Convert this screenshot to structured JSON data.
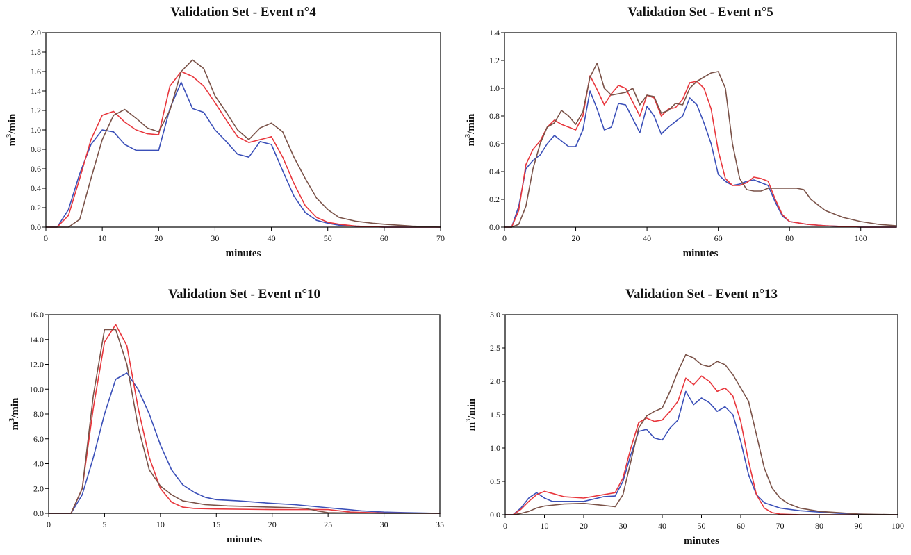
{
  "chart_data": [
    {
      "type": "line",
      "title": "Validation Set - Event n°4",
      "xlabel": "minutes",
      "ylabel": "m3/min",
      "xlim": [
        0,
        70
      ],
      "ylim": [
        0,
        2.0
      ],
      "xticks": [
        0,
        10,
        20,
        30,
        40,
        50,
        60,
        70
      ],
      "yticks": [
        0.0,
        0.2,
        0.4,
        0.6,
        0.8,
        1.0,
        1.2,
        1.4,
        1.6,
        1.8,
        2.0
      ],
      "ytick_labels": [
        "0.0",
        "0.2",
        "0.4",
        "0.6",
        "0.8",
        "1.0",
        "1.2",
        "1.4",
        "1.6",
        "1.8",
        "2.0"
      ],
      "series": [
        {
          "color": "#3a4fb8",
          "x": [
            0,
            2,
            4,
            6,
            8,
            10,
            12,
            14,
            16,
            18,
            20,
            22,
            24,
            26,
            28,
            30,
            32,
            34,
            36,
            38,
            40,
            42,
            44,
            46,
            48,
            50,
            52,
            55,
            60,
            65,
            70
          ],
          "y": [
            0,
            0,
            0.18,
            0.55,
            0.85,
            1.0,
            0.98,
            0.85,
            0.79,
            0.79,
            0.79,
            1.22,
            1.49,
            1.22,
            1.18,
            1.0,
            0.88,
            0.75,
            0.72,
            0.88,
            0.85,
            0.58,
            0.32,
            0.15,
            0.07,
            0.04,
            0.02,
            0.01,
            0,
            0,
            0
          ]
        },
        {
          "color": "#e8363c",
          "x": [
            0,
            2,
            4,
            6,
            8,
            10,
            12,
            14,
            16,
            18,
            20,
            22,
            24,
            26,
            28,
            30,
            32,
            34,
            36,
            38,
            40,
            42,
            44,
            46,
            48,
            50,
            52,
            55,
            60,
            65,
            70
          ],
          "y": [
            0,
            0,
            0.12,
            0.5,
            0.9,
            1.15,
            1.19,
            1.08,
            1.0,
            0.96,
            0.95,
            1.45,
            1.6,
            1.55,
            1.45,
            1.28,
            1.1,
            0.93,
            0.87,
            0.9,
            0.93,
            0.72,
            0.45,
            0.22,
            0.1,
            0.05,
            0.03,
            0.01,
            0,
            0,
            0
          ]
        },
        {
          "color": "#7a5248",
          "x": [
            0,
            4,
            6,
            8,
            10,
            12,
            14,
            16,
            18,
            20,
            22,
            24,
            26,
            28,
            30,
            32,
            34,
            36,
            38,
            40,
            42,
            44,
            46,
            48,
            50,
            52,
            55,
            58,
            60,
            65,
            70
          ],
          "y": [
            0,
            0,
            0.08,
            0.5,
            0.9,
            1.15,
            1.21,
            1.12,
            1.02,
            0.98,
            1.2,
            1.6,
            1.72,
            1.63,
            1.35,
            1.18,
            1.0,
            0.9,
            1.02,
            1.07,
            0.98,
            0.72,
            0.5,
            0.3,
            0.18,
            0.1,
            0.06,
            0.04,
            0.03,
            0.01,
            0
          ]
        }
      ]
    },
    {
      "type": "line",
      "title": "Validation Set - Event n°5",
      "xlabel": "minutes",
      "ylabel": "m3/min",
      "xlim": [
        0,
        110
      ],
      "ylim": [
        0,
        1.4
      ],
      "xticks": [
        0,
        20,
        40,
        60,
        80,
        100
      ],
      "yticks": [
        0.0,
        0.2,
        0.4,
        0.6,
        0.8,
        1.0,
        1.2,
        1.4
      ],
      "ytick_labels": [
        "0.0",
        "0.2",
        "0.4",
        "0.6",
        "0.8",
        "1.0",
        "1.2",
        "1.4"
      ],
      "series": [
        {
          "color": "#3a4fb8",
          "x": [
            0,
            2,
            4,
            6,
            8,
            10,
            12,
            14,
            16,
            18,
            20,
            22,
            24,
            26,
            28,
            30,
            32,
            34,
            36,
            38,
            40,
            42,
            44,
            46,
            48,
            50,
            52,
            54,
            56,
            58,
            60,
            62,
            64,
            66,
            68,
            70,
            72,
            74,
            76,
            78,
            80,
            85,
            90,
            100,
            110
          ],
          "y": [
            0,
            0,
            0.15,
            0.42,
            0.48,
            0.52,
            0.6,
            0.66,
            0.62,
            0.58,
            0.58,
            0.7,
            0.98,
            0.85,
            0.7,
            0.72,
            0.89,
            0.88,
            0.78,
            0.68,
            0.87,
            0.8,
            0.67,
            0.72,
            0.76,
            0.8,
            0.93,
            0.88,
            0.75,
            0.6,
            0.38,
            0.33,
            0.3,
            0.31,
            0.33,
            0.34,
            0.32,
            0.3,
            0.18,
            0.08,
            0.04,
            0.02,
            0.01,
            0,
            0
          ]
        },
        {
          "color": "#e8363c",
          "x": [
            0,
            2,
            4,
            6,
            8,
            10,
            12,
            14,
            16,
            18,
            20,
            22,
            24,
            26,
            28,
            30,
            32,
            34,
            36,
            38,
            40,
            42,
            44,
            46,
            48,
            50,
            52,
            54,
            56,
            58,
            60,
            62,
            64,
            66,
            68,
            70,
            72,
            74,
            76,
            78,
            80,
            85,
            90,
            100,
            110
          ],
          "y": [
            0,
            0,
            0.12,
            0.45,
            0.56,
            0.62,
            0.72,
            0.77,
            0.74,
            0.72,
            0.7,
            0.8,
            1.09,
            0.99,
            0.88,
            0.96,
            1.02,
            1.0,
            0.9,
            0.8,
            0.95,
            0.93,
            0.8,
            0.85,
            0.86,
            0.92,
            1.04,
            1.05,
            1.0,
            0.85,
            0.55,
            0.35,
            0.3,
            0.3,
            0.32,
            0.36,
            0.35,
            0.33,
            0.2,
            0.09,
            0.04,
            0.02,
            0.01,
            0,
            0
          ]
        },
        {
          "color": "#7a5248",
          "x": [
            0,
            2,
            4,
            6,
            8,
            10,
            12,
            14,
            16,
            18,
            20,
            22,
            24,
            26,
            28,
            30,
            32,
            34,
            36,
            38,
            40,
            42,
            44,
            46,
            48,
            50,
            52,
            54,
            56,
            58,
            60,
            62,
            64,
            66,
            68,
            70,
            72,
            74,
            76,
            78,
            80,
            82,
            84,
            86,
            90,
            95,
            100,
            105,
            110
          ],
          "y": [
            0,
            0,
            0.02,
            0.15,
            0.42,
            0.6,
            0.72,
            0.75,
            0.84,
            0.8,
            0.74,
            0.83,
            1.08,
            1.18,
            1.0,
            0.95,
            0.96,
            0.97,
            1.0,
            0.88,
            0.95,
            0.94,
            0.82,
            0.84,
            0.89,
            0.88,
            1.0,
            1.05,
            1.08,
            1.11,
            1.12,
            1.0,
            0.6,
            0.35,
            0.27,
            0.26,
            0.26,
            0.28,
            0.28,
            0.28,
            0.28,
            0.28,
            0.27,
            0.2,
            0.12,
            0.07,
            0.04,
            0.02,
            0.01
          ]
        }
      ]
    },
    {
      "type": "line",
      "title": "Validation Set - Event n°10",
      "xlabel": "minutes",
      "ylabel": "m3/min",
      "xlim": [
        0,
        35
      ],
      "ylim": [
        0,
        16.0
      ],
      "xticks": [
        0,
        5,
        10,
        15,
        20,
        25,
        30,
        35
      ],
      "yticks": [
        0,
        2,
        4,
        6,
        8,
        10,
        12,
        14,
        16
      ],
      "ytick_labels": [
        "0.0",
        "2.0",
        "4.0",
        "6.0",
        "8.0",
        "10.0",
        "12.0",
        "14.0",
        "16.0"
      ],
      "series": [
        {
          "color": "#3a4fb8",
          "x": [
            0,
            2,
            3,
            4,
            5,
            6,
            7,
            8,
            9,
            10,
            11,
            12,
            13,
            14,
            15,
            17,
            20,
            22,
            25,
            28,
            30,
            32,
            35
          ],
          "y": [
            0,
            0,
            1.5,
            4.5,
            8.0,
            10.8,
            11.3,
            10.0,
            8.0,
            5.5,
            3.5,
            2.3,
            1.7,
            1.3,
            1.1,
            1.0,
            0.8,
            0.7,
            0.45,
            0.2,
            0.1,
            0.05,
            0
          ]
        },
        {
          "color": "#e8363c",
          "x": [
            0,
            2,
            3,
            4,
            5,
            6,
            7,
            8,
            9,
            10,
            11,
            12,
            13,
            15,
            20,
            25,
            27,
            30,
            35
          ],
          "y": [
            0,
            0,
            2.0,
            8.5,
            13.8,
            15.2,
            13.5,
            8.5,
            4.5,
            2.0,
            0.9,
            0.5,
            0.4,
            0.35,
            0.3,
            0.3,
            0.1,
            0.02,
            0
          ]
        },
        {
          "color": "#7a5248",
          "x": [
            0,
            2,
            3,
            4,
            5,
            6,
            7,
            8,
            9,
            10,
            11,
            12,
            14,
            16,
            18,
            20,
            22,
            23,
            24,
            25,
            30,
            35
          ],
          "y": [
            0,
            0,
            2.0,
            9.5,
            14.8,
            14.8,
            12.0,
            7.0,
            3.5,
            2.2,
            1.5,
            1.0,
            0.7,
            0.6,
            0.55,
            0.5,
            0.45,
            0.4,
            0.2,
            0.05,
            0,
            0
          ]
        }
      ]
    },
    {
      "type": "line",
      "title": "Validation Set - Event n°13",
      "xlabel": "minutes",
      "ylabel": "m3/min",
      "xlim": [
        0,
        100
      ],
      "ylim": [
        0,
        3.0
      ],
      "xticks": [
        0,
        10,
        20,
        30,
        40,
        50,
        60,
        70,
        80,
        90,
        100
      ],
      "yticks": [
        0.0,
        0.5,
        1.0,
        1.5,
        2.0,
        2.5,
        3.0
      ],
      "ytick_labels": [
        "0.0",
        "0.5",
        "1.0",
        "1.5",
        "2.0",
        "2.5",
        "3.0"
      ],
      "series": [
        {
          "color": "#3a4fb8",
          "x": [
            0,
            2,
            4,
            6,
            8,
            10,
            12,
            15,
            20,
            25,
            28,
            30,
            32,
            34,
            36,
            38,
            40,
            42,
            44,
            46,
            48,
            50,
            52,
            54,
            56,
            58,
            60,
            62,
            64,
            66,
            68,
            70,
            75,
            80,
            85,
            90,
            95,
            100
          ],
          "y": [
            0,
            0,
            0.1,
            0.25,
            0.33,
            0.25,
            0.2,
            0.2,
            0.2,
            0.27,
            0.28,
            0.5,
            0.9,
            1.25,
            1.28,
            1.15,
            1.12,
            1.3,
            1.42,
            1.85,
            1.65,
            1.75,
            1.68,
            1.55,
            1.62,
            1.5,
            1.1,
            0.6,
            0.3,
            0.18,
            0.14,
            0.1,
            0.06,
            0.04,
            0.02,
            0.01,
            0,
            0
          ]
        },
        {
          "color": "#e8363c",
          "x": [
            0,
            2,
            4,
            6,
            8,
            10,
            12,
            15,
            20,
            25,
            28,
            30,
            32,
            34,
            36,
            38,
            40,
            42,
            44,
            46,
            48,
            50,
            52,
            54,
            56,
            58,
            60,
            62,
            64,
            66,
            68,
            70,
            75,
            80,
            100
          ],
          "y": [
            0,
            0,
            0.08,
            0.2,
            0.3,
            0.35,
            0.32,
            0.27,
            0.25,
            0.3,
            0.33,
            0.55,
            1.0,
            1.38,
            1.45,
            1.4,
            1.42,
            1.55,
            1.7,
            2.05,
            1.95,
            2.08,
            2.0,
            1.85,
            1.9,
            1.78,
            1.4,
            0.8,
            0.3,
            0.1,
            0.03,
            0.01,
            0,
            0,
            0
          ]
        },
        {
          "color": "#7a5248",
          "x": [
            0,
            2,
            4,
            6,
            8,
            10,
            15,
            20,
            25,
            28,
            30,
            32,
            34,
            36,
            38,
            40,
            42,
            44,
            46,
            48,
            50,
            52,
            54,
            56,
            58,
            60,
            62,
            64,
            66,
            68,
            70,
            72,
            75,
            80,
            85,
            90,
            100
          ],
          "y": [
            0,
            0,
            0.02,
            0.05,
            0.1,
            0.13,
            0.16,
            0.17,
            0.14,
            0.12,
            0.3,
            0.8,
            1.3,
            1.48,
            1.55,
            1.6,
            1.85,
            2.15,
            2.4,
            2.35,
            2.25,
            2.22,
            2.3,
            2.25,
            2.1,
            1.9,
            1.7,
            1.2,
            0.7,
            0.4,
            0.25,
            0.17,
            0.1,
            0.05,
            0.03,
            0.01,
            0
          ]
        }
      ]
    }
  ]
}
